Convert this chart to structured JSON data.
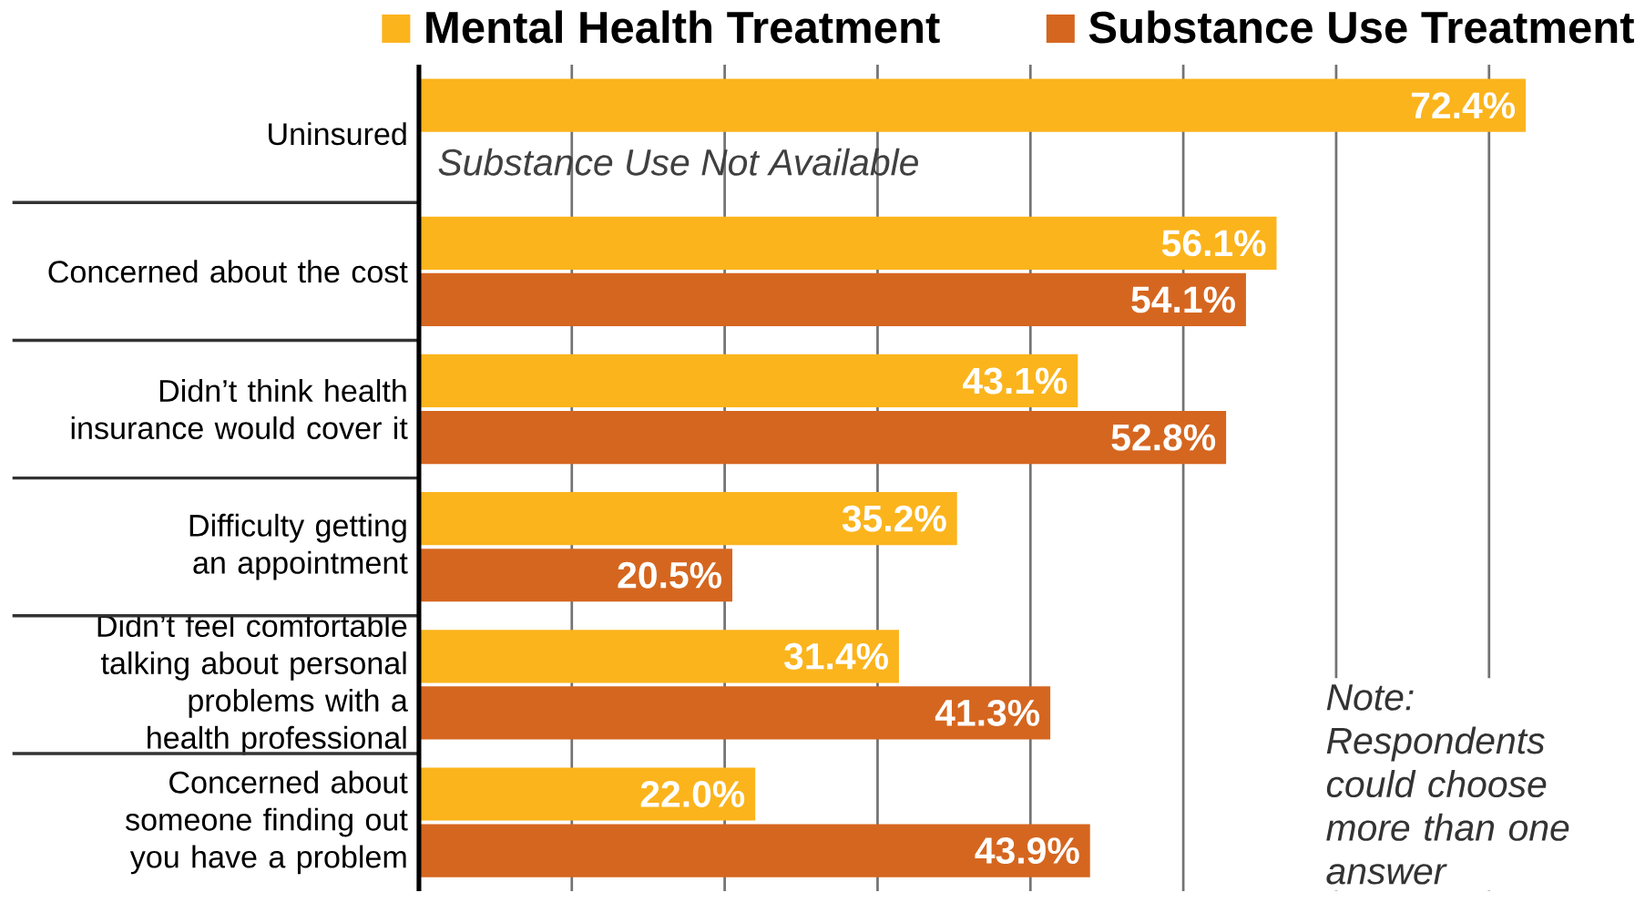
{
  "chart_data": {
    "type": "bar",
    "orientation": "horizontal",
    "categories": [
      "Uninsured",
      "Concerned about the cost",
      "Didn’t think health insurance would cover it",
      "Difficulty getting an appointment",
      "Didn’t feel comfortable talking about personal problems with a health professional",
      "Concerned about someone finding out you have a problem"
    ],
    "series": [
      {
        "name": "Mental Health Treatment",
        "color": "#fbb41c",
        "values": [
          72.4,
          56.1,
          43.1,
          35.2,
          31.4,
          22.0
        ],
        "value_labels": [
          "72.4%",
          "56.1%",
          "43.1%",
          "35.2%",
          "31.4%",
          "22.0%"
        ]
      },
      {
        "name": "Substance Use Treatment",
        "color": "#d5661f",
        "values": [
          null,
          54.1,
          52.8,
          20.5,
          41.3,
          43.9
        ],
        "value_labels": [
          null,
          "54.1%",
          "52.8%",
          "20.5%",
          "41.3%",
          "43.9%"
        ]
      }
    ],
    "grid": "x",
    "tick_labels": "y",
    "legend": "top",
    "annotations": [
      "Substance Use Not Available",
      "Note: Respondents could choose more than one answer"
    ]
  }
}
